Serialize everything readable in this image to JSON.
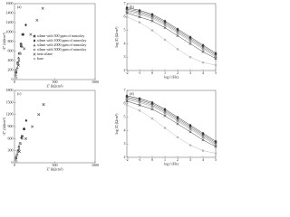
{
  "chart_data": [
    {
      "type": "scatter",
      "label": "(a)",
      "xlabel": "Z' (kΩcm²)",
      "ylabel": "-Z'' (kΩcm²)",
      "xlim": [
        0,
        1000
      ],
      "xticks": [
        0,
        500,
        1000
      ],
      "ylim": [
        0,
        1600
      ],
      "yticks": [
        0,
        200,
        400,
        600,
        800,
        1000,
        1200,
        1400,
        1600
      ],
      "legend": "upper right",
      "series": [
        {
          "name": "silane with 500 ppm of nanoclay",
          "color": "#555555",
          "marker": "square",
          "x": [
            20,
            40,
            60,
            80,
            100
          ],
          "values": [
            150,
            350,
            550,
            750,
            950
          ]
        },
        {
          "name": "silane with 1000 ppm of nanoclay",
          "color": "#333333",
          "marker": "diamond",
          "x": [
            20,
            50,
            80,
            110,
            140
          ],
          "values": [
            200,
            450,
            700,
            950,
            1150
          ]
        },
        {
          "name": "silane with 2000 ppm of nanoclay",
          "color": "#777777",
          "marker": "triangle",
          "x": [
            15,
            35,
            55,
            75,
            95
          ],
          "values": [
            100,
            250,
            400,
            550,
            700
          ]
        },
        {
          "name": "silane with 5000 ppm of nanoclay",
          "color": "#999999",
          "marker": "circle",
          "x": [
            10,
            25,
            40,
            55,
            70
          ],
          "values": [
            80,
            200,
            320,
            440,
            560
          ]
        },
        {
          "name": "neat silane",
          "color": "#444444",
          "marker": "cross",
          "x": [
            50,
            120,
            200,
            280,
            350
          ],
          "values": [
            300,
            650,
            950,
            1250,
            1500
          ]
        },
        {
          "name": "bare",
          "color": "#bbbbbb",
          "marker": "circle",
          "x": [
            5,
            10,
            15,
            20,
            25
          ],
          "values": [
            5,
            15,
            25,
            35,
            45
          ]
        }
      ]
    },
    {
      "type": "line",
      "label": "(b)",
      "xlabel": "log f (Hz)",
      "ylabel": "log |Z| (Ωcm²)",
      "xlim": [
        -2,
        5
      ],
      "xticks": [
        -2,
        -1,
        0,
        1,
        2,
        3,
        4,
        5
      ],
      "ylim": [
        2,
        7
      ],
      "yticks": [
        2,
        3,
        4,
        5,
        6,
        7
      ],
      "x": [
        -2,
        -1,
        0,
        1,
        2,
        3,
        4,
        5
      ],
      "series": [
        {
          "color": "#555555",
          "marker": "square",
          "values": [
            6.6,
            6.4,
            6.1,
            5.6,
            5.0,
            4.4,
            3.8,
            3.2
          ]
        },
        {
          "color": "#333333",
          "marker": "diamond",
          "values": [
            6.7,
            6.5,
            6.2,
            5.7,
            5.1,
            4.5,
            3.9,
            3.3
          ]
        },
        {
          "color": "#777777",
          "marker": "triangle",
          "values": [
            6.5,
            6.3,
            6.0,
            5.5,
            4.9,
            4.3,
            3.7,
            3.1
          ]
        },
        {
          "color": "#999999",
          "marker": "circle",
          "values": [
            6.4,
            6.2,
            5.9,
            5.4,
            4.8,
            4.2,
            3.6,
            3.0
          ]
        },
        {
          "color": "#444444",
          "marker": "cross",
          "values": [
            6.3,
            6.0,
            5.7,
            5.2,
            4.6,
            4.0,
            3.4,
            2.9
          ]
        },
        {
          "color": "#bbbbbb",
          "marker": "circle",
          "values": [
            6.0,
            5.6,
            5.0,
            4.3,
            3.6,
            3.0,
            2.6,
            2.4
          ]
        }
      ]
    },
    {
      "type": "scatter",
      "label": "(c)",
      "xlabel": "Z' (kΩcm²)",
      "ylabel": "-Z'' (kΩcm²)",
      "xlim": [
        0,
        1000
      ],
      "xticks": [
        0,
        500,
        1000
      ],
      "ylim": [
        0,
        1800
      ],
      "yticks": [
        0,
        300,
        600,
        900,
        1200,
        1500,
        1800
      ],
      "series": [
        {
          "color": "#555555",
          "marker": "square",
          "x": [
            20,
            45,
            70,
            95,
            120
          ],
          "values": [
            120,
            300,
            480,
            660,
            840
          ]
        },
        {
          "color": "#333333",
          "marker": "diamond",
          "x": [
            25,
            55,
            85,
            115,
            145
          ],
          "values": [
            180,
            400,
            620,
            840,
            1050
          ]
        },
        {
          "color": "#777777",
          "marker": "triangle",
          "x": [
            15,
            35,
            55,
            75,
            95
          ],
          "values": [
            90,
            220,
            350,
            480,
            610
          ]
        },
        {
          "color": "#999999",
          "marker": "circle",
          "x": [
            10,
            25,
            40,
            55,
            70
          ],
          "values": [
            70,
            170,
            270,
            370,
            470
          ]
        },
        {
          "color": "#444444",
          "marker": "cross",
          "x": [
            60,
            140,
            220,
            300,
            360
          ],
          "values": [
            280,
            600,
            900,
            1200,
            1450
          ]
        },
        {
          "color": "#bbbbbb",
          "marker": "circle",
          "x": [
            5,
            10,
            15,
            20,
            25
          ],
          "values": [
            5,
            12,
            20,
            28,
            36
          ]
        }
      ]
    },
    {
      "type": "line",
      "label": "(d)",
      "xlabel": "log f (Hz)",
      "ylabel": "log |Z| (Ωcm²)",
      "xlim": [
        -2,
        5
      ],
      "xticks": [
        -2,
        -1,
        0,
        1,
        2,
        3,
        4,
        5
      ],
      "ylim": [
        2,
        7
      ],
      "yticks": [
        2,
        3,
        4,
        5,
        6,
        7
      ],
      "x": [
        -2,
        -1,
        0,
        1,
        2,
        3,
        4,
        5
      ],
      "series": [
        {
          "color": "#555555",
          "marker": "square",
          "values": [
            6.5,
            6.3,
            6.0,
            5.5,
            4.9,
            4.3,
            3.7,
            3.1
          ]
        },
        {
          "color": "#333333",
          "marker": "diamond",
          "values": [
            6.6,
            6.4,
            6.1,
            5.6,
            5.0,
            4.4,
            3.8,
            3.2
          ]
        },
        {
          "color": "#777777",
          "marker": "triangle",
          "values": [
            6.4,
            6.2,
            5.9,
            5.4,
            4.8,
            4.2,
            3.6,
            3.0
          ]
        },
        {
          "color": "#999999",
          "marker": "circle",
          "values": [
            6.3,
            6.1,
            5.8,
            5.3,
            4.7,
            4.1,
            3.5,
            2.9
          ]
        },
        {
          "color": "#444444",
          "marker": "cross",
          "values": [
            6.2,
            5.9,
            5.6,
            5.1,
            4.5,
            3.9,
            3.3,
            2.8
          ]
        },
        {
          "color": "#bbbbbb",
          "marker": "circle",
          "values": [
            5.9,
            5.5,
            4.9,
            4.2,
            3.5,
            2.9,
            2.5,
            2.3
          ]
        }
      ]
    }
  ]
}
